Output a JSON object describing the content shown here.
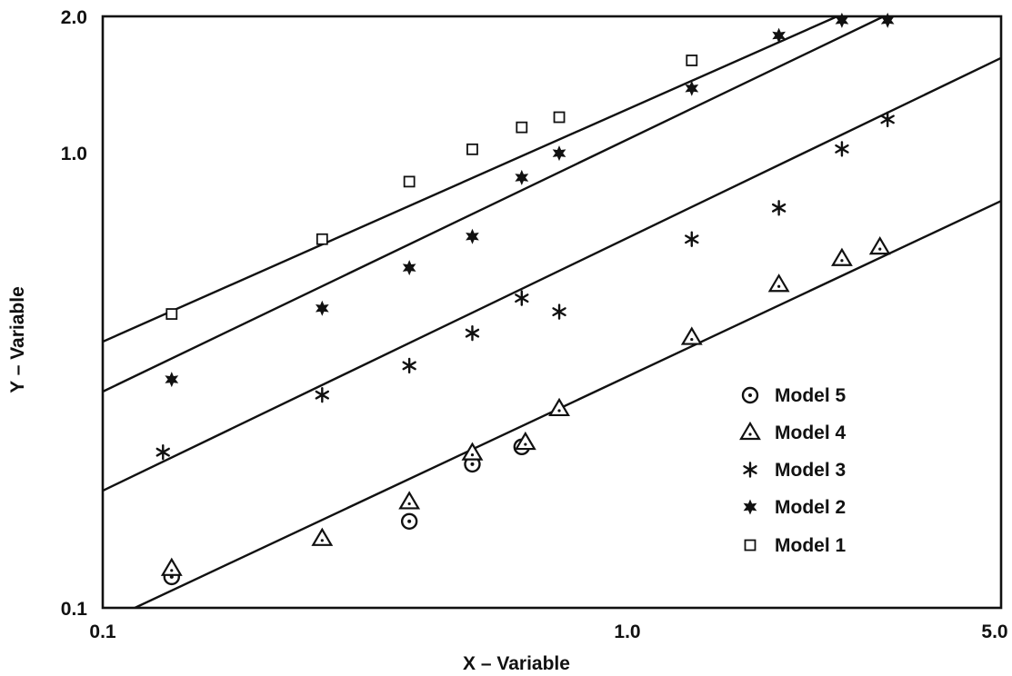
{
  "chart_data": {
    "type": "scatter",
    "title": "",
    "xlabel": "X – Variable",
    "ylabel": "Y – Variable",
    "xscale": "log",
    "yscale": "log",
    "xlim": [
      0.1,
      5.0
    ],
    "ylim": [
      0.1,
      2.0
    ],
    "xticks": [
      0.1,
      1.0,
      5.0
    ],
    "xtick_labels": [
      "0.1",
      "1.0",
      "5.0"
    ],
    "yticks": [
      0.1,
      1.0,
      2.0
    ],
    "ytick_labels": [
      "0.1",
      "1.0",
      "2.0"
    ],
    "grid": false,
    "legend_position": "right-middle",
    "color": "#111111",
    "series": [
      {
        "name": "Model 5",
        "marker": "circle-dot",
        "x": [
          0.135,
          0.38,
          0.5,
          0.62
        ],
        "y": [
          0.117,
          0.155,
          0.207,
          0.226
        ]
      },
      {
        "name": "Model 4",
        "marker": "triangle-dot",
        "x": [
          0.135,
          0.26,
          0.38,
          0.5,
          0.63,
          0.73,
          1.3,
          1.9,
          2.5,
          2.95
        ],
        "y": [
          0.122,
          0.142,
          0.171,
          0.219,
          0.231,
          0.274,
          0.393,
          0.514,
          0.586,
          0.621
        ],
        "fit": {
          "x": [
            0.115,
            5.0
          ],
          "y": [
            0.1,
            0.785
          ]
        }
      },
      {
        "name": "Model 3",
        "marker": "asterisk",
        "x": [
          0.13,
          0.26,
          0.38,
          0.5,
          0.62,
          0.73,
          1.3,
          1.9,
          2.5,
          3.05
        ],
        "y": [
          0.22,
          0.294,
          0.341,
          0.402,
          0.48,
          0.448,
          0.647,
          0.758,
          1.022,
          1.187
        ],
        "fit": {
          "x": [
            0.1,
            5.0
          ],
          "y": [
            0.181,
            1.62
          ]
        }
      },
      {
        "name": "Model 2",
        "marker": "star",
        "x": [
          0.135,
          0.26,
          0.38,
          0.5,
          0.62,
          0.73,
          1.3,
          1.9,
          2.5,
          3.05
        ],
        "y": [
          0.318,
          0.456,
          0.56,
          0.656,
          0.884,
          1.0,
          1.389,
          1.815,
          1.96,
          1.96
        ],
        "fit": {
          "x": [
            0.1,
            3.0
          ],
          "y": [
            0.299,
            2.0
          ]
        }
      },
      {
        "name": "Model 1",
        "marker": "square",
        "x": [
          0.135,
          0.26,
          0.38,
          0.5,
          0.62,
          0.73,
          1.3
        ],
        "y": [
          0.443,
          0.647,
          0.866,
          1.02,
          1.14,
          1.2,
          1.6
        ],
        "fit": {
          "x": [
            0.1,
            2.45
          ],
          "y": [
            0.385,
            2.0
          ]
        }
      }
    ]
  }
}
